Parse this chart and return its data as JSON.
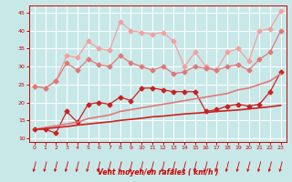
{
  "x": [
    0,
    1,
    2,
    3,
    4,
    5,
    6,
    7,
    8,
    9,
    10,
    11,
    12,
    13,
    14,
    15,
    16,
    17,
    18,
    19,
    20,
    21,
    22,
    23
  ],
  "series": [
    {
      "name": "line1_light_pink_upper",
      "color": "#f4a0a0",
      "linewidth": 0.9,
      "markersize": 2.5,
      "marker": "D",
      "y": [
        24.5,
        24.0,
        26.0,
        33.0,
        32.5,
        37.0,
        35.0,
        34.5,
        42.5,
        40.0,
        39.5,
        39.0,
        39.5,
        37.0,
        30.0,
        34.0,
        30.0,
        29.0,
        34.0,
        35.0,
        31.5,
        40.0,
        40.5,
        45.5
      ]
    },
    {
      "name": "line2_medium_pink",
      "color": "#e07878",
      "linewidth": 0.9,
      "markersize": 2.5,
      "marker": "D",
      "y": [
        24.5,
        24.0,
        26.0,
        31.0,
        29.0,
        32.0,
        30.5,
        30.0,
        33.0,
        31.0,
        30.0,
        29.0,
        30.0,
        28.0,
        28.5,
        30.0,
        29.5,
        29.0,
        30.0,
        30.5,
        29.0,
        32.0,
        34.0,
        40.0
      ]
    },
    {
      "name": "line3_red_scatter",
      "color": "#cc2020",
      "linewidth": 0.9,
      "markersize": 2.5,
      "marker": "D",
      "y": [
        12.5,
        12.5,
        11.5,
        17.5,
        14.5,
        19.5,
        20.0,
        19.5,
        21.5,
        20.5,
        24.0,
        24.0,
        23.5,
        23.0,
        23.0,
        23.0,
        17.5,
        18.0,
        19.0,
        19.5,
        19.0,
        19.5,
        23.0,
        28.5
      ]
    },
    {
      "name": "line4_linear_medium",
      "color": "#e07878",
      "linewidth": 1.2,
      "markersize": 0,
      "marker": null,
      "y": [
        12.5,
        13.0,
        13.5,
        14.0,
        14.5,
        15.5,
        16.0,
        16.5,
        17.5,
        18.0,
        18.5,
        19.0,
        19.5,
        20.0,
        20.5,
        21.0,
        21.5,
        22.0,
        22.5,
        23.5,
        24.0,
        25.0,
        26.0,
        28.0
      ]
    },
    {
      "name": "line5_linear_lower",
      "color": "#cc2020",
      "linewidth": 1.2,
      "markersize": 0,
      "marker": null,
      "y": [
        12.5,
        12.7,
        13.0,
        13.3,
        13.7,
        14.0,
        14.3,
        14.6,
        15.0,
        15.3,
        15.6,
        16.0,
        16.2,
        16.5,
        16.8,
        17.0,
        17.2,
        17.5,
        17.7,
        17.9,
        18.2,
        18.5,
        18.8,
        19.2
      ]
    }
  ],
  "xlim": [
    -0.5,
    23.5
  ],
  "ylim": [
    9,
    47
  ],
  "yticks": [
    10,
    15,
    20,
    25,
    30,
    35,
    40,
    45
  ],
  "xticks": [
    0,
    1,
    2,
    3,
    4,
    5,
    6,
    7,
    8,
    9,
    10,
    11,
    12,
    13,
    14,
    15,
    16,
    17,
    18,
    19,
    20,
    21,
    22,
    23
  ],
  "xlabel": "Vent moyen/en rafales ( km/h )",
  "background_color": "#c8e8e8",
  "grid_color": "#ffffff",
  "tick_color": "#cc0000",
  "label_color": "#cc0000",
  "arrow_color": "#cc0000",
  "spine_color": "#cc0000"
}
